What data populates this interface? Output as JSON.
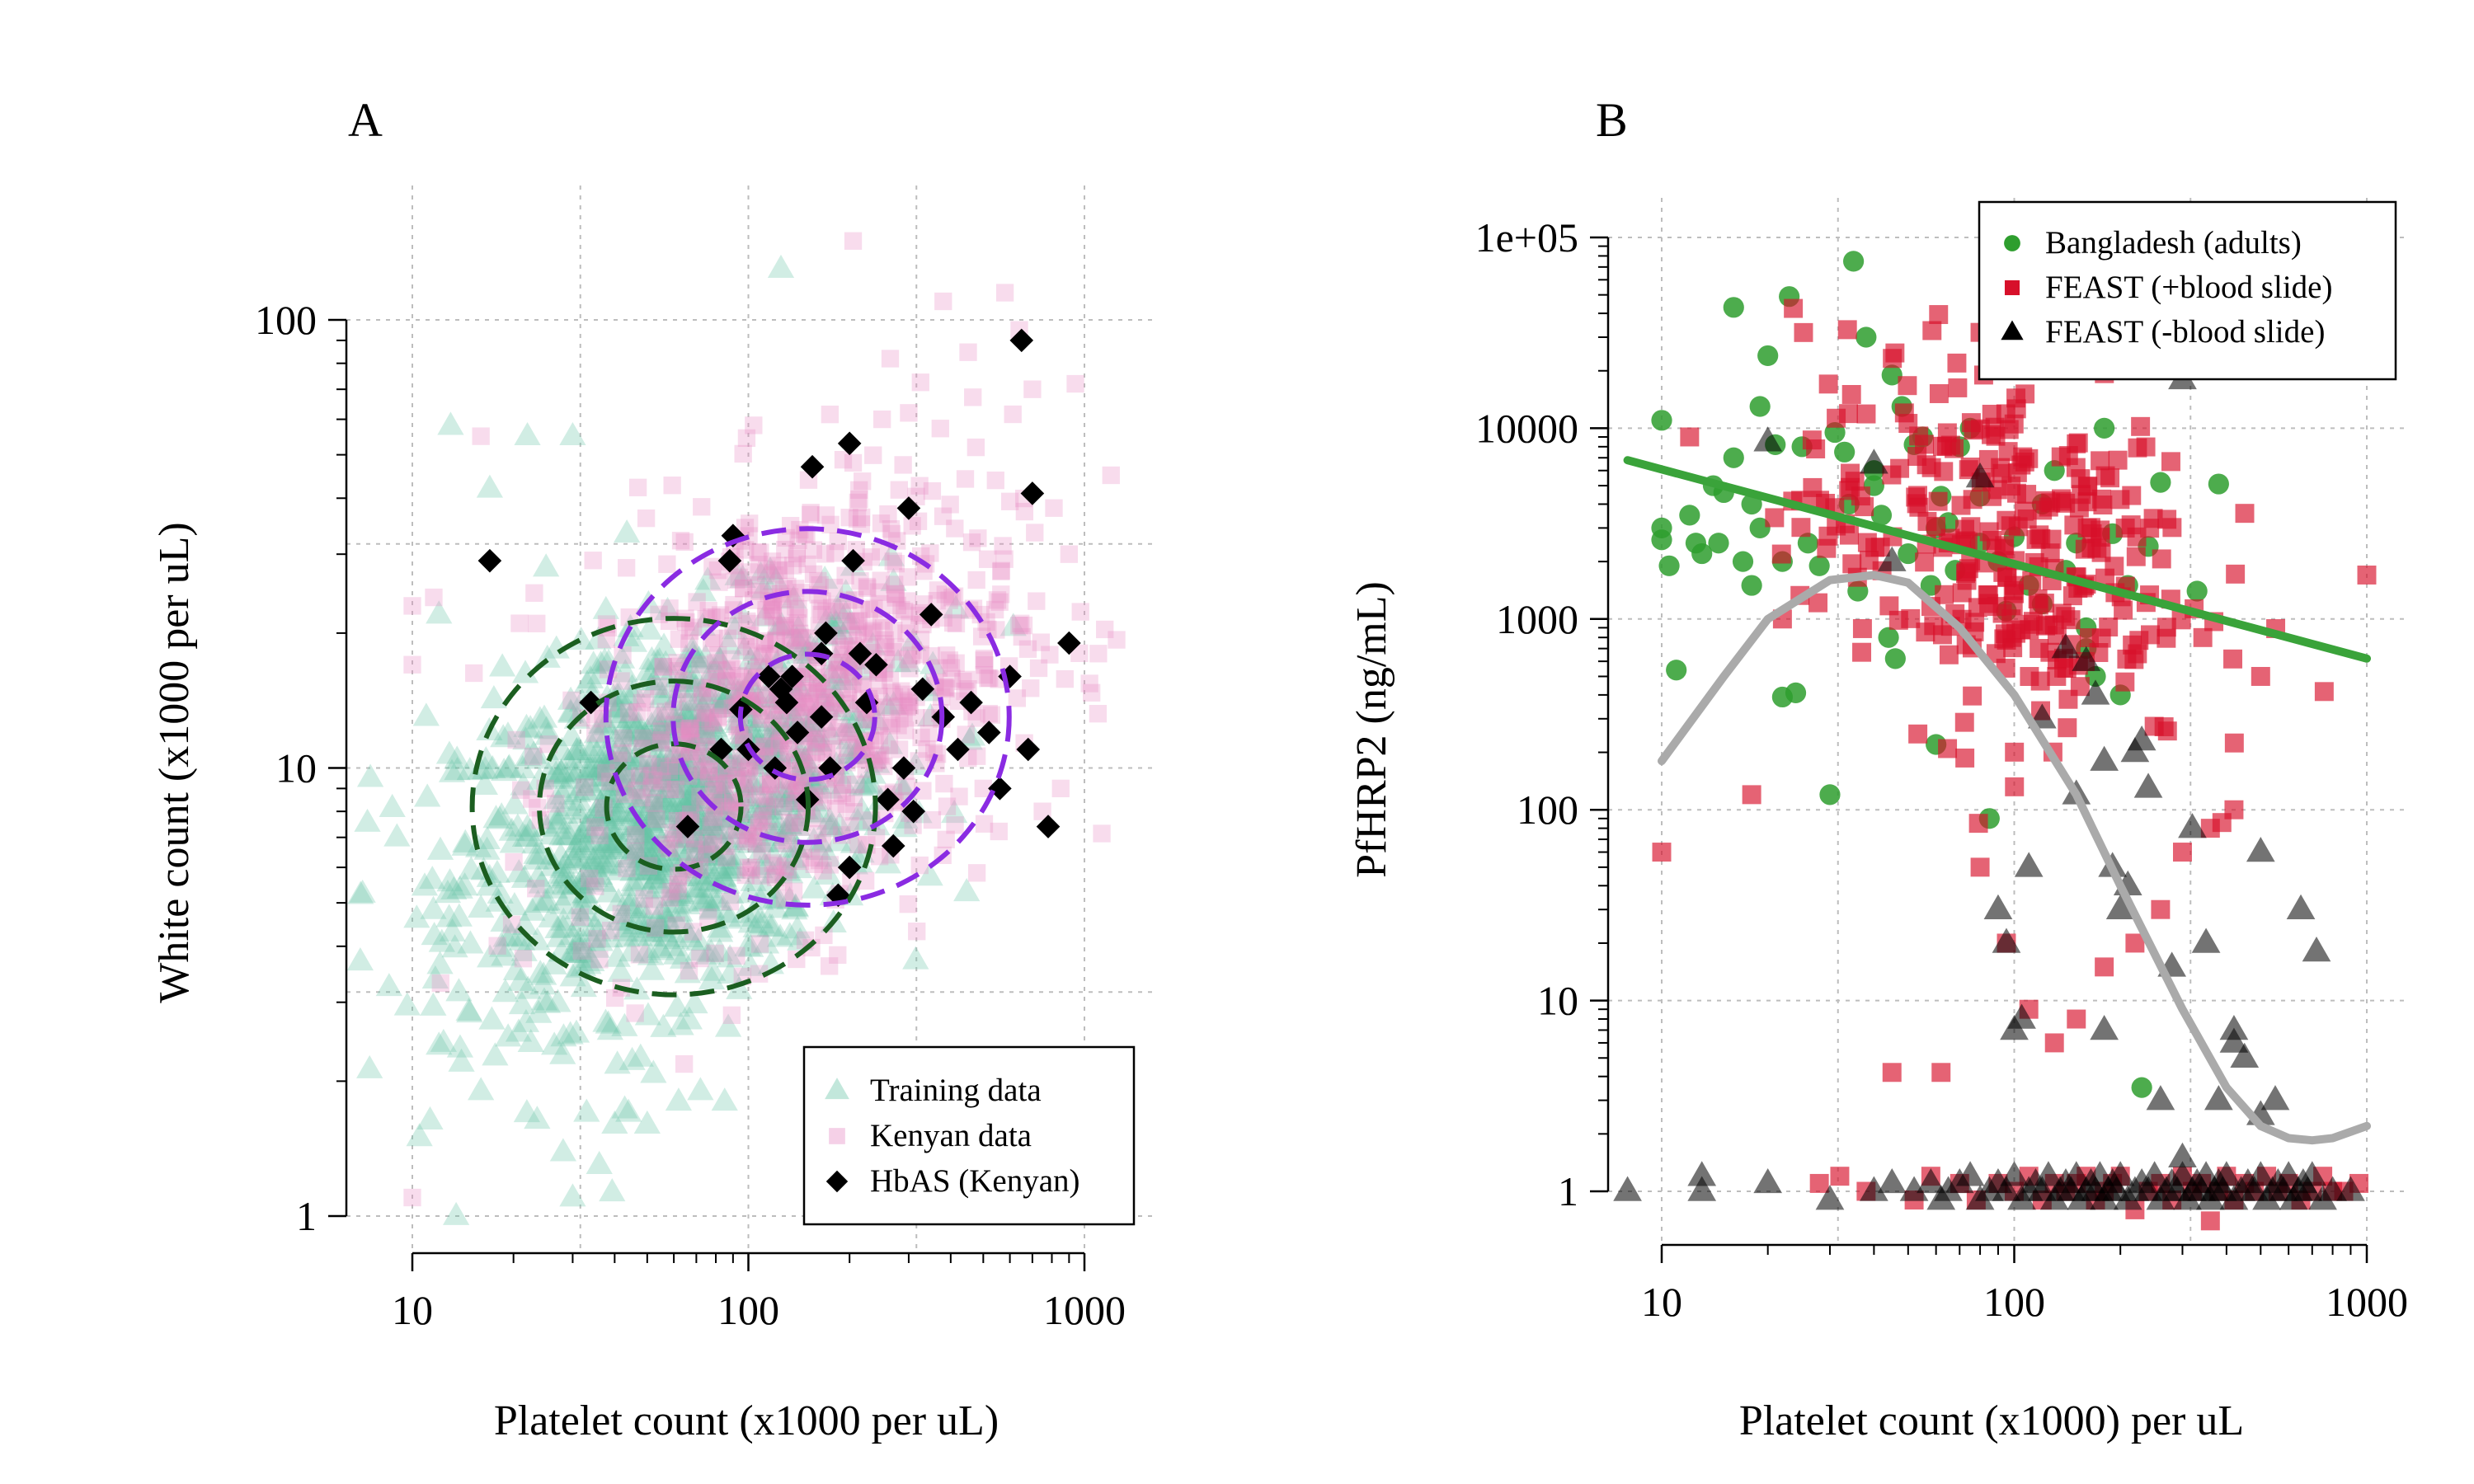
{
  "chart_data": [
    {
      "type": "scatter",
      "panel_label": "A",
      "xlabel": "Platelet count (x1000 per uL)",
      "ylabel": "White count (x1000 per uL)",
      "xscale": "log",
      "yscale": "log",
      "xlim": [
        6.5,
        1600
      ],
      "ylim": [
        0.75,
        200
      ],
      "x_ticks": [
        10,
        100,
        1000
      ],
      "x_tick_labels": [
        "10",
        "100",
        "1000"
      ],
      "y_ticks": [
        1,
        10,
        100
      ],
      "y_tick_labels": [
        "1",
        "10",
        "100"
      ],
      "grid": true,
      "legend_position": "bottom-right",
      "legend": [
        {
          "label": "Training data",
          "marker": "triangle",
          "color": "#66c2a5"
        },
        {
          "label": "Kenyan data",
          "marker": "square",
          "color": "#e78ac3"
        },
        {
          "label": "HbAS (Kenyan)",
          "marker": "diamond",
          "color": "#000000"
        }
      ],
      "series": [
        {
          "name": "Training data",
          "marker": "triangle",
          "color": "#66c2a5",
          "alpha": 0.3,
          "cloud": {
            "center": [
              60,
              8
            ],
            "log10_sd": [
              0.32,
              0.2
            ],
            "n": 1200
          },
          "x": [
            13.5,
            30,
            36,
            125,
            7,
            7.5,
            12,
            14,
            16,
            10.5,
            22,
            13,
            17,
            25,
            30,
            50,
            62,
            72,
            85,
            44,
            40,
            33,
            11,
            12,
            9
          ],
          "y": [
            1.0,
            1.1,
            1.3,
            130,
            3.7,
            9.5,
            2.4,
            2.2,
            1.9,
            1.5,
            55,
            58,
            42,
            28,
            55,
            1.6,
            1.8,
            1.9,
            1.8,
            1.7,
            1.6,
            1.7,
            13,
            22,
            7
          ]
        },
        {
          "name": "Kenyan data",
          "marker": "square",
          "color": "#e78ac3",
          "alpha": 0.3,
          "cloud": {
            "center": [
              140,
              14
            ],
            "log10_sd": [
              0.32,
              0.24
            ],
            "n": 900
          },
          "x": [
            10,
            10,
            16,
            205,
            250,
            380,
            580,
            640,
            700,
            940,
            1200,
            1100,
            900,
            850,
            750,
            500,
            10,
            300,
            200,
            100
          ],
          "y": [
            1.1,
            23,
            55,
            150,
            60,
            110,
            115,
            95,
            70,
            72,
            45,
            18,
            30,
            9,
            8,
            9,
            17,
            62,
            12,
            6
          ]
        },
        {
          "name": "HbAS (Kenyan)",
          "marker": "diamond",
          "color": "#000000",
          "x": [
            17,
            34,
            66,
            83,
            88,
            90,
            95,
            100,
            115,
            120,
            125,
            130,
            135,
            150,
            155,
            165,
            170,
            175,
            185,
            200,
            205,
            215,
            225,
            240,
            260,
            270,
            290,
            300,
            310,
            330,
            350,
            380,
            420,
            460,
            520,
            560,
            600,
            650,
            680,
            700,
            780,
            900,
            200,
            140,
            165
          ],
          "y": [
            29,
            14,
            7.4,
            11,
            29,
            33,
            13.5,
            11,
            16,
            10,
            15,
            14,
            16,
            8.5,
            47,
            18,
            20,
            10,
            5.2,
            53,
            29,
            18,
            14,
            17,
            8.5,
            6.7,
            10,
            38,
            8,
            15,
            22,
            13,
            11,
            14,
            12,
            9,
            16,
            90,
            11,
            41,
            7.4,
            19,
            6,
            12,
            13
          ]
        }
      ],
      "contours": [
        {
          "group": "Training data",
          "color": "#1b5e20",
          "style": "dashed",
          "center": [
            60,
            8.2
          ],
          "radii_log10": [
            [
              0.2,
              0.14
            ],
            [
              0.4,
              0.28
            ],
            [
              0.6,
              0.42
            ]
          ]
        },
        {
          "group": "Kenyan data",
          "color": "#8a2be2",
          "style": "dashed",
          "center": [
            150,
            13
          ],
          "radii_log10": [
            [
              0.2,
              0.14
            ],
            [
              0.4,
              0.28
            ],
            [
              0.6,
              0.42
            ]
          ]
        }
      ]
    },
    {
      "type": "scatter",
      "panel_label": "B",
      "xlabel": "Platelet count (x1000) per uL",
      "ylabel": "PfHRP2 (ng/mL)",
      "xscale": "log",
      "yscale": "log",
      "xlim": [
        8,
        1000
      ],
      "ylim": [
        0.5,
        150000
      ],
      "x_ticks": [
        10,
        100,
        1000
      ],
      "x_tick_labels": [
        "10",
        "100",
        "1000"
      ],
      "y_ticks": [
        1,
        10,
        100,
        1000,
        10000,
        100000
      ],
      "y_tick_labels": [
        "1",
        "10",
        "100",
        "1000",
        "10000",
        "1e+05"
      ],
      "grid": true,
      "legend_position": "top-right",
      "legend": [
        {
          "label": "Bangladesh (adults)",
          "marker": "circle",
          "color": "#2e9e2e"
        },
        {
          "label": "FEAST (+blood slide)",
          "marker": "square",
          "color": "#d7102a"
        },
        {
          "label": "FEAST (-blood slide)",
          "marker": "triangle",
          "color": "#000000"
        }
      ],
      "series": [
        {
          "name": "Bangladesh (adults)",
          "marker": "circle",
          "color": "#2e9e2e",
          "alpha": 0.85,
          "x": [
            10,
            10,
            10,
            10.5,
            11,
            12,
            12.5,
            13,
            14,
            14.5,
            15,
            16,
            16,
            17,
            18,
            19,
            19,
            20,
            21,
            22,
            23,
            24,
            25,
            26,
            28,
            30,
            31,
            33,
            34,
            35,
            36,
            38,
            40,
            42,
            44,
            45,
            46,
            48,
            50,
            52,
            55,
            58,
            60,
            62,
            65,
            68,
            70,
            75,
            80,
            85,
            90,
            95,
            100,
            110,
            120,
            130,
            140,
            150,
            160,
            170,
            180,
            190,
            200,
            210,
            230,
            240,
            260,
            330,
            380,
            18,
            22,
            40,
            60,
            80,
            120,
            160
          ],
          "y": [
            11000,
            3000,
            2600,
            1900,
            540,
            3500,
            2500,
            2200,
            5000,
            2500,
            4600,
            7000,
            43000,
            2000,
            4000,
            13000,
            3000,
            24000,
            8200,
            390,
            49000,
            410,
            8000,
            2500,
            1900,
            120,
            9500,
            7500,
            4000,
            75000,
            1400,
            30000,
            6000,
            3500,
            800,
            19000,
            620,
            13000,
            2200,
            8200,
            9000,
            1500,
            220,
            4400,
            3200,
            1800,
            8000,
            10000,
            4400,
            90,
            2000,
            1100,
            2700,
            1500,
            4000,
            6000,
            1800,
            2500,
            700,
            500,
            10000,
            2800,
            400,
            1500,
            3.5,
            2400,
            5200,
            1400,
            5100,
            1500,
            2000,
            5000,
            3000,
            2500,
            1200,
            900
          ]
        },
        {
          "name": "FEAST (+blood slide)",
          "marker": "square",
          "color": "#d7102a",
          "alpha": 0.65,
          "cloud": {
            "center": [
              90,
              2500
            ],
            "log10_sd": [
              0.28,
              0.5
            ],
            "n": 320
          },
          "x": [
            10,
            12,
            18,
            22,
            28,
            32,
            38,
            45,
            52,
            58,
            62,
            70,
            78,
            90,
            100,
            110,
            120,
            130,
            140,
            150,
            160,
            170,
            180,
            190,
            200,
            220,
            240,
            260,
            280,
            300,
            320,
            340,
            360,
            380,
            400,
            420,
            450,
            480,
            520,
            560,
            600,
            650,
            700,
            750,
            800,
            860,
            950,
            1000,
            500,
            420,
            360,
            300,
            260,
            220,
            180,
            150,
            130,
            110,
            95,
            80
          ],
          "y": [
            60,
            9000,
            120,
            1000,
            1.1,
            1.2,
            1.0,
            4.2,
            0.9,
            1.2,
            4.2,
            1.1,
            0.9,
            1.1,
            1.0,
            1.2,
            0.9,
            1.1,
            1.0,
            1.1,
            1.2,
            0.9,
            1.0,
            1.1,
            1.2,
            0.8,
            1.0,
            1.1,
            0.9,
            1.2,
            1.0,
            1.1,
            0.7,
            1.0,
            1.2,
            0.9,
            1.1,
            1.0,
            1.2,
            1.0,
            1.1,
            0.9,
            1.0,
            1.2,
            1.0,
            1.0,
            1.1,
            1700,
            500,
            100,
            80,
            60,
            30,
            20,
            15,
            8,
            6,
            9,
            20,
            50
          ]
        },
        {
          "name": "FEAST (-blood slide)",
          "marker": "triangle",
          "color": "#000000",
          "alpha": 0.55,
          "x": [
            8,
            13,
            13,
            20,
            30,
            40,
            45,
            52,
            58,
            62,
            65,
            70,
            75,
            80,
            85,
            90,
            95,
            100,
            105,
            110,
            115,
            120,
            125,
            130,
            135,
            140,
            145,
            150,
            155,
            160,
            165,
            170,
            175,
            180,
            185,
            190,
            195,
            200,
            210,
            220,
            230,
            240,
            250,
            260,
            270,
            280,
            290,
            300,
            310,
            320,
            330,
            340,
            350,
            360,
            370,
            380,
            390,
            400,
            420,
            440,
            460,
            480,
            500,
            520,
            540,
            560,
            580,
            600,
            620,
            640,
            660,
            680,
            700,
            750,
            800,
            900,
            20,
            40,
            80,
            90,
            100,
            95,
            105,
            110,
            120,
            150,
            160,
            170,
            180,
            190,
            200,
            210,
            220,
            230,
            240,
            260,
            280,
            300,
            320,
            350,
            380,
            420,
            450,
            500,
            550,
            650,
            720,
            420,
            500,
            180,
            140,
            45,
            300
          ],
          "y": [
            1.0,
            1.2,
            1.0,
            1.1,
            0.9,
            1.0,
            1.1,
            1.0,
            1.1,
            0.9,
            1.0,
            1.1,
            1.2,
            0.9,
            1.0,
            1.1,
            1.0,
            1.2,
            0.9,
            1.0,
            1.1,
            1.0,
            1.2,
            0.9,
            1.0,
            1.1,
            1.0,
            1.2,
            0.9,
            1.0,
            1.1,
            1.0,
            1.2,
            0.9,
            1.0,
            1.1,
            1.0,
            1.2,
            0.9,
            1.0,
            1.1,
            1.0,
            1.2,
            0.9,
            1.0,
            1.1,
            1.0,
            1.2,
            0.9,
            1.0,
            1.1,
            1.0,
            1.2,
            0.9,
            1.0,
            1.1,
            1.0,
            1.2,
            0.9,
            1.0,
            1.1,
            1.0,
            1.2,
            0.9,
            1.0,
            1.1,
            1.0,
            1.2,
            0.9,
            1.0,
            1.1,
            1.0,
            1.2,
            0.9,
            1.0,
            1.0,
            8500,
            6500,
            5500,
            30,
            7,
            20,
            8,
            50,
            300,
            120,
            600,
            400,
            180,
            50,
            30,
            40,
            200,
            230,
            130,
            3,
            15,
            18000,
            80,
            20,
            3,
            7,
            5,
            60,
            3,
            30,
            18,
            6,
            2.5,
            7,
            700,
            2000,
            1.5
          ]
        }
      ],
      "lines": [
        {
          "name": "Bangladesh fit",
          "color": "#3aa33a",
          "x": [
            8,
            1000
          ],
          "y": [
            6800,
            620
          ]
        },
        {
          "name": "FEAST fit",
          "color": "#aaaaaa",
          "x": [
            10,
            15,
            20,
            30,
            40,
            50,
            70,
            100,
            150,
            200,
            300,
            400,
            500,
            600,
            700,
            800,
            1000
          ],
          "y": [
            180,
            500,
            1000,
            1600,
            1700,
            1550,
            900,
            400,
            120,
            40,
            9,
            3.5,
            2.2,
            1.9,
            1.85,
            1.9,
            2.2
          ]
        }
      ]
    }
  ]
}
